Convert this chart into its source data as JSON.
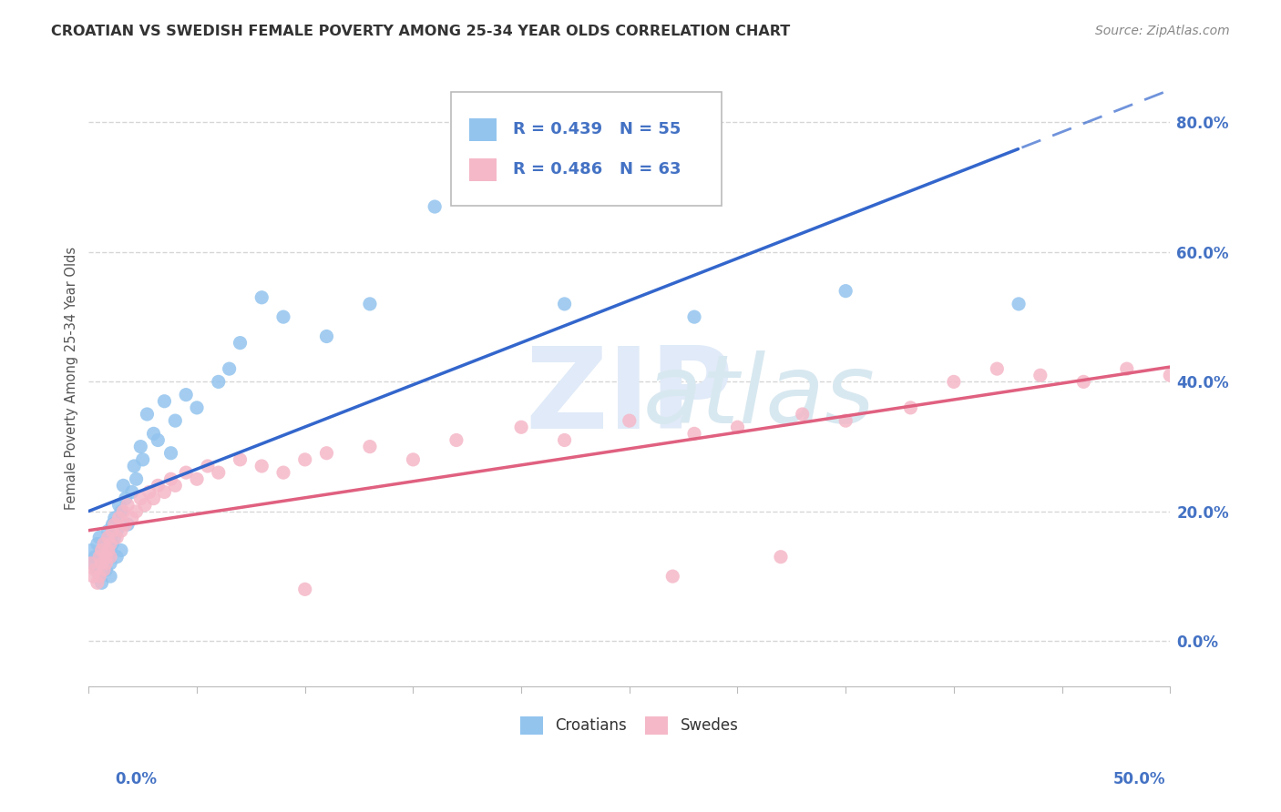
{
  "title": "CROATIAN VS SWEDISH FEMALE POVERTY AMONG 25-34 YEAR OLDS CORRELATION CHART",
  "source": "Source: ZipAtlas.com",
  "ylabel": "Female Poverty Among 25-34 Year Olds",
  "ytick_labels": [
    "0.0%",
    "20.0%",
    "40.0%",
    "60.0%",
    "80.0%"
  ],
  "ytick_vals": [
    0.0,
    0.2,
    0.4,
    0.6,
    0.8
  ],
  "xlim": [
    0.0,
    0.5
  ],
  "ylim": [
    -0.07,
    0.88
  ],
  "croatian_R": 0.439,
  "croatian_N": 55,
  "swedish_R": 0.486,
  "swedish_N": 63,
  "croatian_color": "#93C4EE",
  "swedish_color": "#F5B8C8",
  "croatian_line_color": "#3366CC",
  "swedish_line_color": "#E06080",
  "background_color": "#FFFFFF",
  "grid_color": "#CCCCCC",
  "watermark_color": "#E0EAF8",
  "title_color": "#333333",
  "source_color": "#888888",
  "tick_label_color": "#4472C4",
  "ylabel_color": "#555555",
  "croatian_x": [
    0.001,
    0.002,
    0.003,
    0.004,
    0.004,
    0.005,
    0.005,
    0.006,
    0.006,
    0.007,
    0.007,
    0.008,
    0.008,
    0.009,
    0.009,
    0.01,
    0.01,
    0.01,
    0.011,
    0.011,
    0.012,
    0.012,
    0.013,
    0.013,
    0.014,
    0.015,
    0.015,
    0.016,
    0.017,
    0.018,
    0.02,
    0.021,
    0.022,
    0.024,
    0.025,
    0.027,
    0.03,
    0.032,
    0.035,
    0.038,
    0.04,
    0.045,
    0.05,
    0.06,
    0.065,
    0.07,
    0.08,
    0.09,
    0.11,
    0.13,
    0.16,
    0.22,
    0.28,
    0.35,
    0.43
  ],
  "croatian_y": [
    0.14,
    0.12,
    0.13,
    0.11,
    0.15,
    0.1,
    0.16,
    0.09,
    0.13,
    0.12,
    0.14,
    0.11,
    0.15,
    0.13,
    0.17,
    0.1,
    0.12,
    0.14,
    0.15,
    0.18,
    0.16,
    0.19,
    0.13,
    0.17,
    0.21,
    0.14,
    0.2,
    0.24,
    0.22,
    0.18,
    0.23,
    0.27,
    0.25,
    0.3,
    0.28,
    0.35,
    0.32,
    0.31,
    0.37,
    0.29,
    0.34,
    0.38,
    0.36,
    0.4,
    0.42,
    0.46,
    0.53,
    0.5,
    0.47,
    0.52,
    0.67,
    0.52,
    0.5,
    0.54,
    0.52
  ],
  "swedish_x": [
    0.001,
    0.002,
    0.003,
    0.004,
    0.005,
    0.005,
    0.006,
    0.006,
    0.007,
    0.007,
    0.008,
    0.008,
    0.009,
    0.009,
    0.01,
    0.01,
    0.011,
    0.012,
    0.013,
    0.014,
    0.015,
    0.016,
    0.017,
    0.018,
    0.02,
    0.022,
    0.024,
    0.026,
    0.028,
    0.03,
    0.032,
    0.035,
    0.038,
    0.04,
    0.045,
    0.05,
    0.055,
    0.06,
    0.07,
    0.08,
    0.09,
    0.1,
    0.11,
    0.13,
    0.15,
    0.17,
    0.2,
    0.22,
    0.25,
    0.28,
    0.3,
    0.33,
    0.35,
    0.38,
    0.4,
    0.42,
    0.44,
    0.46,
    0.48,
    0.5,
    0.27,
    0.32,
    0.1
  ],
  "swedish_y": [
    0.12,
    0.1,
    0.11,
    0.09,
    0.13,
    0.1,
    0.12,
    0.14,
    0.11,
    0.15,
    0.13,
    0.12,
    0.16,
    0.14,
    0.13,
    0.15,
    0.17,
    0.18,
    0.16,
    0.19,
    0.17,
    0.2,
    0.18,
    0.21,
    0.19,
    0.2,
    0.22,
    0.21,
    0.23,
    0.22,
    0.24,
    0.23,
    0.25,
    0.24,
    0.26,
    0.25,
    0.27,
    0.26,
    0.28,
    0.27,
    0.26,
    0.28,
    0.29,
    0.3,
    0.28,
    0.31,
    0.33,
    0.31,
    0.34,
    0.32,
    0.33,
    0.35,
    0.34,
    0.36,
    0.4,
    0.42,
    0.41,
    0.4,
    0.42,
    0.41,
    0.1,
    0.13,
    0.08
  ],
  "legend_entries": [
    {
      "label": "R = 0.439   N = 55",
      "color": "#93C4EE"
    },
    {
      "label": "R = 0.486   N = 63",
      "color": "#F5B8C8"
    }
  ],
  "bottom_legend": [
    "Croatians",
    "Swedes"
  ]
}
